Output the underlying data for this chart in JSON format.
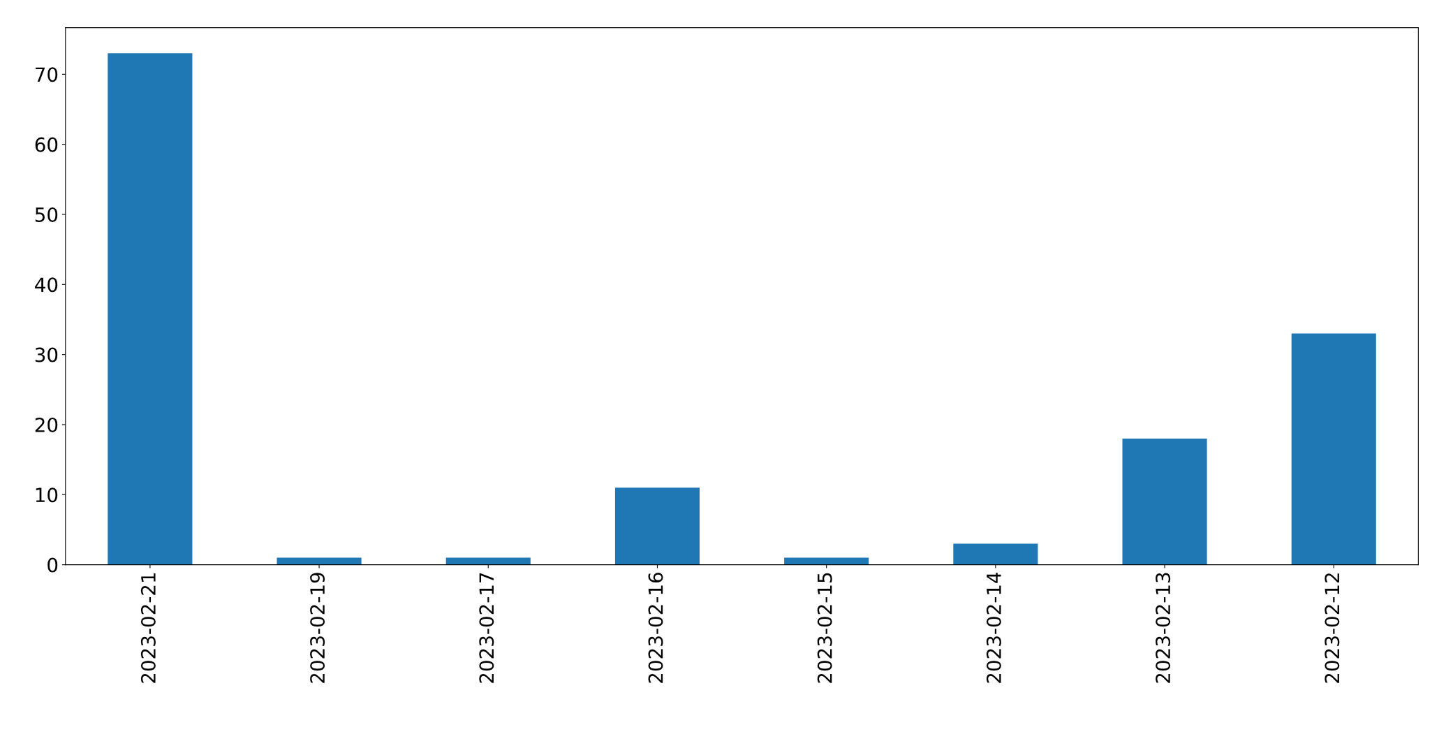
{
  "chart_data": {
    "type": "bar",
    "categories": [
      "2023-02-21",
      "2023-02-19",
      "2023-02-17",
      "2023-02-16",
      "2023-02-15",
      "2023-02-14",
      "2023-02-13",
      "2023-02-12"
    ],
    "values": [
      73,
      1,
      1,
      11,
      1,
      3,
      18,
      33
    ],
    "color": "#1f77b4",
    "ylim": [
      0,
      76.65
    ],
    "yticks": [
      0,
      10,
      20,
      30,
      40,
      50,
      60,
      70
    ],
    "grid": false,
    "legend": false
  }
}
